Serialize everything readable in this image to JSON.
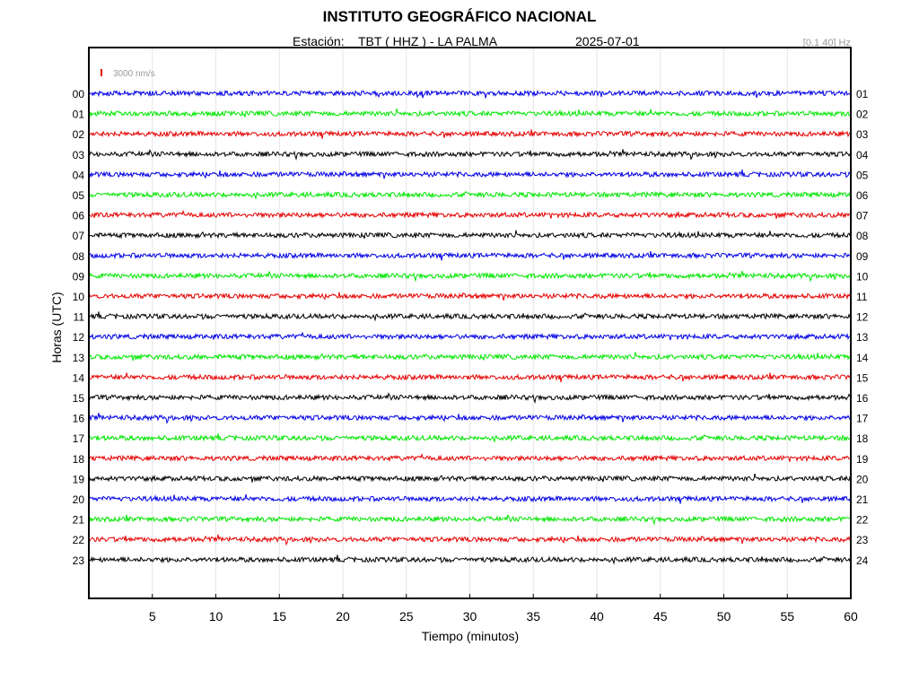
{
  "header": {
    "title": "INSTITUTO GEOGRÁFICO NACIONAL",
    "station_label": "Estación:",
    "station_value": "TBT ( HHZ ) - LA PALMA",
    "date": "2025-07-01",
    "filter": "[0.1 40] Hz"
  },
  "chart_data": {
    "type": "line",
    "title": "INSTITUTO GEOGRÁFICO NACIONAL",
    "xlabel": "Tiempo (minutos)",
    "ylabel": "Horas (UTC)",
    "xlim": [
      0,
      60
    ],
    "x_ticks": [
      5,
      10,
      15,
      20,
      25,
      30,
      35,
      40,
      45,
      50,
      55,
      60
    ],
    "left_hour_labels": [
      "00",
      "01",
      "02",
      "03",
      "04",
      "05",
      "06",
      "07",
      "08",
      "09",
      "10",
      "11",
      "12",
      "13",
      "14",
      "15",
      "16",
      "17",
      "18",
      "19",
      "20",
      "21",
      "22",
      "23"
    ],
    "right_hour_labels": [
      "01",
      "02",
      "03",
      "04",
      "05",
      "06",
      "07",
      "08",
      "09",
      "10",
      "11",
      "12",
      "13",
      "14",
      "15",
      "16",
      "17",
      "18",
      "19",
      "20",
      "21",
      "22",
      "23",
      "24"
    ],
    "trace_colors": [
      "#0000e6",
      "#00e600",
      "#e60000",
      "#000000"
    ],
    "scale_bar": {
      "label": "3000 nm/s",
      "color": "#e60000"
    },
    "grid": true
  }
}
